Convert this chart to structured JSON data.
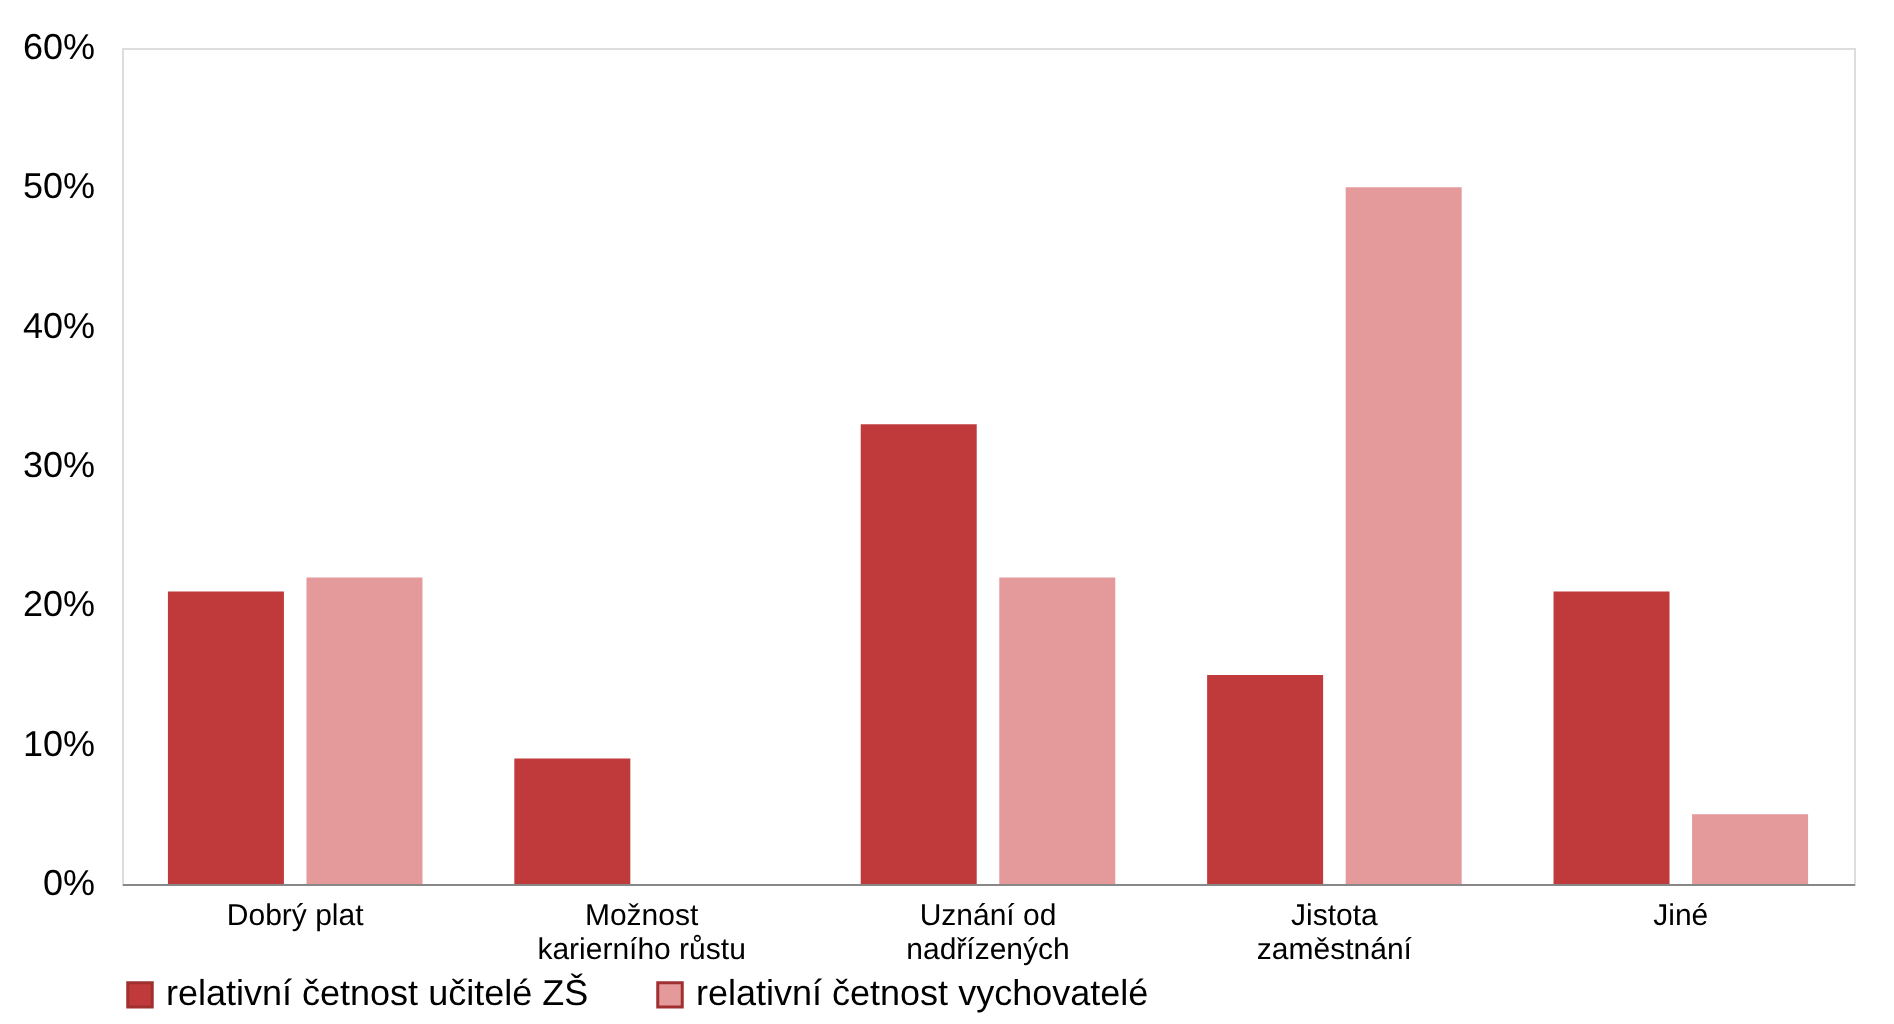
{
  "chart_data": {
    "type": "bar",
    "categories": [
      "Dobrý plat",
      "Možnost karierního růstu",
      "Uznání od nadřízených",
      "Jistota zaměstnání",
      "Jiné"
    ],
    "series": [
      {
        "name": "relativní četnost učitelé ZŠ",
        "color": "#c0393b",
        "values": [
          21,
          9,
          33,
          15,
          21
        ]
      },
      {
        "name": "relativní četnost vychovatelé",
        "color": "#e49a9a",
        "values": [
          22,
          0,
          22,
          50,
          5
        ]
      }
    ],
    "ylim": [
      0,
      60
    ],
    "yticks": [
      {
        "value": 0,
        "label": "0%"
      },
      {
        "value": 10,
        "label": "10%"
      },
      {
        "value": 20,
        "label": "20%"
      },
      {
        "value": 30,
        "label": "30%"
      },
      {
        "value": 40,
        "label": "40%"
      },
      {
        "value": 50,
        "label": "50%"
      },
      {
        "value": 60,
        "label": "60%"
      }
    ],
    "grid": false,
    "legend": "bottom"
  }
}
